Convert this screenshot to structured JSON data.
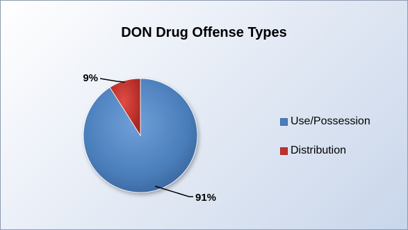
{
  "chart_data": {
    "type": "pie",
    "title": "DON Drug Offense Types",
    "categories": [
      "Use/Possession",
      "Distribution"
    ],
    "values": [
      91,
      9
    ],
    "labels": [
      "91%",
      "9%"
    ],
    "colors": [
      "#4a7ebb",
      "#c0312c"
    ],
    "legend_position": "right"
  }
}
